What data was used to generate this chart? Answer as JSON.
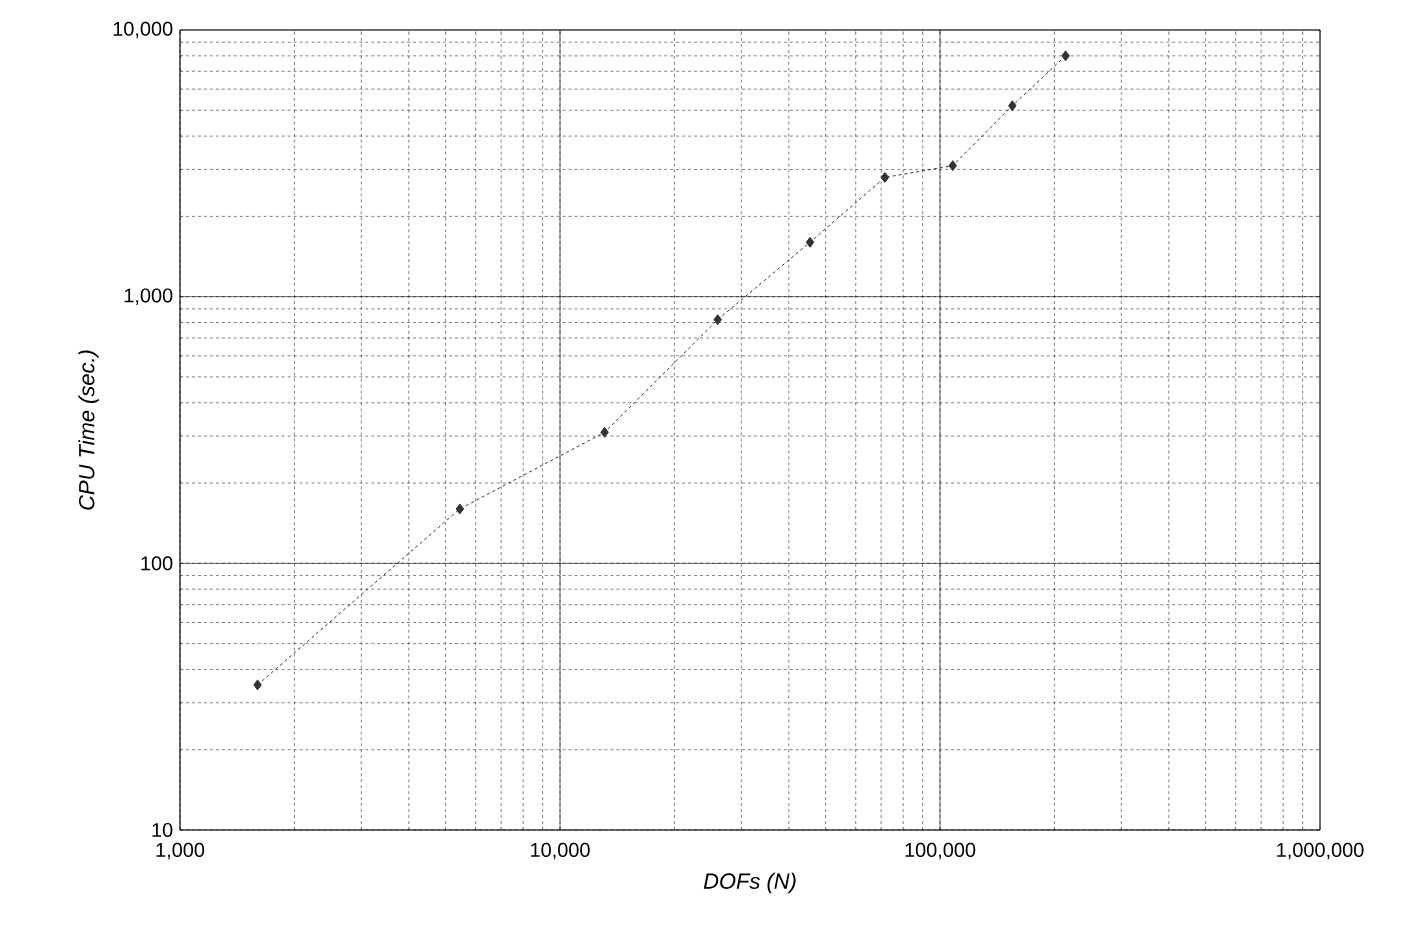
{
  "chart_data": {
    "type": "line",
    "xlabel": "DOFs (N)",
    "ylabel": "CPU Time (sec.)",
    "log": "xy",
    "grid": true,
    "marker": "diamond",
    "line_style": "dashed",
    "xlim": [
      1000,
      1000000
    ],
    "ylim": [
      10,
      10000
    ],
    "xticks": [
      {
        "value": 1000,
        "label": "1,000"
      },
      {
        "value": 10000,
        "label": "10,000"
      },
      {
        "value": 100000,
        "label": "100,000"
      },
      {
        "value": 1000000,
        "label": "1,000,000"
      }
    ],
    "yticks": [
      10,
      100,
      {
        "value": 1000,
        "label": "1,000"
      },
      {
        "value": 10000,
        "label": "10,000"
      }
    ],
    "series": [
      {
        "color": "#333333",
        "x": [
          1600,
          5450,
          13100,
          26000,
          45500,
          71600,
          108000,
          155000,
          214000
        ],
        "values": [
          35,
          160,
          310,
          820,
          1600,
          2800,
          3100,
          5200,
          8000
        ]
      }
    ]
  }
}
